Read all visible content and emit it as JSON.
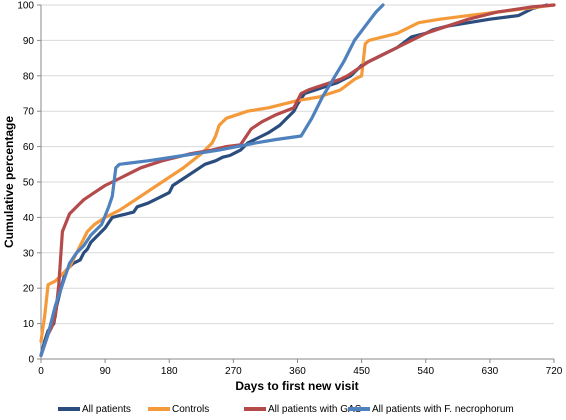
{
  "chart_data": {
    "type": "line",
    "xlabel": "Days to first new visit",
    "ylabel": "Cumulative percentage",
    "xlim": [
      0,
      720
    ],
    "ylim": [
      0,
      100
    ],
    "xticks": [
      0,
      90,
      180,
      270,
      360,
      450,
      540,
      630,
      720
    ],
    "yticks": [
      0,
      10,
      20,
      30,
      40,
      50,
      60,
      70,
      80,
      90,
      100
    ],
    "grid": "horizontal",
    "legend_position": "bottom",
    "series": [
      {
        "name": "All patients",
        "color": "#2a4d7e",
        "points": [
          [
            0,
            1
          ],
          [
            5,
            5
          ],
          [
            10,
            8
          ],
          [
            18,
            10
          ],
          [
            22,
            15
          ],
          [
            28,
            20
          ],
          [
            35,
            25
          ],
          [
            45,
            27
          ],
          [
            55,
            28
          ],
          [
            60,
            30
          ],
          [
            65,
            31
          ],
          [
            70,
            33
          ],
          [
            80,
            35
          ],
          [
            90,
            37
          ],
          [
            100,
            40
          ],
          [
            110,
            40.5
          ],
          [
            120,
            41
          ],
          [
            130,
            41.5
          ],
          [
            135,
            43
          ],
          [
            150,
            44
          ],
          [
            160,
            45
          ],
          [
            170,
            46
          ],
          [
            180,
            47
          ],
          [
            185,
            49
          ],
          [
            200,
            51
          ],
          [
            215,
            53
          ],
          [
            230,
            55
          ],
          [
            245,
            56
          ],
          [
            255,
            57
          ],
          [
            265,
            57.5
          ],
          [
            270,
            58
          ],
          [
            280,
            59
          ],
          [
            290,
            61
          ],
          [
            300,
            62
          ],
          [
            310,
            63
          ],
          [
            320,
            64
          ],
          [
            335,
            66
          ],
          [
            345,
            68
          ],
          [
            355,
            70
          ],
          [
            360,
            72
          ],
          [
            370,
            75
          ],
          [
            385,
            76
          ],
          [
            400,
            77
          ],
          [
            415,
            78
          ],
          [
            425,
            79
          ],
          [
            435,
            80
          ],
          [
            450,
            83
          ],
          [
            460,
            84
          ],
          [
            480,
            86
          ],
          [
            500,
            88
          ],
          [
            520,
            91
          ],
          [
            540,
            92
          ],
          [
            550,
            93
          ],
          [
            570,
            94
          ],
          [
            600,
            95
          ],
          [
            630,
            96
          ],
          [
            670,
            97
          ],
          [
            690,
            99
          ],
          [
            710,
            100
          ]
        ]
      },
      {
        "name": "Controls",
        "color": "#f59a3b",
        "points": [
          [
            0,
            5
          ],
          [
            5,
            12
          ],
          [
            10,
            21
          ],
          [
            20,
            22
          ],
          [
            30,
            24
          ],
          [
            40,
            26
          ],
          [
            55,
            32
          ],
          [
            65,
            36
          ],
          [
            75,
            38
          ],
          [
            90,
            40
          ],
          [
            110,
            42
          ],
          [
            140,
            46
          ],
          [
            170,
            50
          ],
          [
            200,
            54
          ],
          [
            225,
            58
          ],
          [
            240,
            61
          ],
          [
            245,
            63
          ],
          [
            250,
            66
          ],
          [
            260,
            68
          ],
          [
            290,
            70
          ],
          [
            320,
            71
          ],
          [
            360,
            73
          ],
          [
            390,
            74
          ],
          [
            420,
            76
          ],
          [
            440,
            79
          ],
          [
            450,
            80
          ],
          [
            455,
            89
          ],
          [
            460,
            90
          ],
          [
            480,
            91
          ],
          [
            500,
            92
          ],
          [
            530,
            95
          ],
          [
            560,
            96
          ],
          [
            600,
            97
          ],
          [
            640,
            98
          ],
          [
            680,
            99
          ],
          [
            720,
            100
          ]
        ]
      },
      {
        "name": "All patients with GAS",
        "color": "#b54a4a",
        "points": [
          [
            0,
            1
          ],
          [
            5,
            4
          ],
          [
            10,
            7
          ],
          [
            15,
            9
          ],
          [
            20,
            12
          ],
          [
            25,
            21
          ],
          [
            30,
            36
          ],
          [
            40,
            41
          ],
          [
            50,
            43
          ],
          [
            60,
            45
          ],
          [
            75,
            47
          ],
          [
            90,
            49
          ],
          [
            110,
            51
          ],
          [
            140,
            54
          ],
          [
            170,
            56
          ],
          [
            210,
            58
          ],
          [
            240,
            59
          ],
          [
            260,
            60
          ],
          [
            280,
            60.5
          ],
          [
            285,
            62
          ],
          [
            295,
            65
          ],
          [
            310,
            67
          ],
          [
            330,
            69
          ],
          [
            355,
            71
          ],
          [
            365,
            75
          ],
          [
            375,
            76
          ],
          [
            390,
            77
          ],
          [
            405,
            78
          ],
          [
            420,
            79
          ],
          [
            430,
            80
          ],
          [
            445,
            82
          ],
          [
            460,
            84
          ],
          [
            480,
            86
          ],
          [
            500,
            88
          ],
          [
            520,
            90
          ],
          [
            540,
            92
          ],
          [
            570,
            94
          ],
          [
            600,
            96
          ],
          [
            640,
            98
          ],
          [
            690,
            99.5
          ],
          [
            720,
            100
          ]
        ]
      },
      {
        "name": "All patients with F. necrophorum",
        "color": "#4e81bd",
        "points": [
          [
            0,
            1
          ],
          [
            10,
            7
          ],
          [
            20,
            15
          ],
          [
            30,
            21
          ],
          [
            40,
            27
          ],
          [
            50,
            30
          ],
          [
            60,
            32
          ],
          [
            70,
            35
          ],
          [
            85,
            38
          ],
          [
            95,
            43
          ],
          [
            100,
            46
          ],
          [
            105,
            54
          ],
          [
            110,
            55
          ],
          [
            150,
            56
          ],
          [
            200,
            57.5
          ],
          [
            250,
            59
          ],
          [
            300,
            61
          ],
          [
            330,
            62
          ],
          [
            365,
            63
          ],
          [
            380,
            68
          ],
          [
            395,
            74
          ],
          [
            410,
            79
          ],
          [
            425,
            84
          ],
          [
            440,
            90
          ],
          [
            455,
            94
          ],
          [
            470,
            98
          ],
          [
            480,
            100
          ]
        ]
      }
    ]
  }
}
